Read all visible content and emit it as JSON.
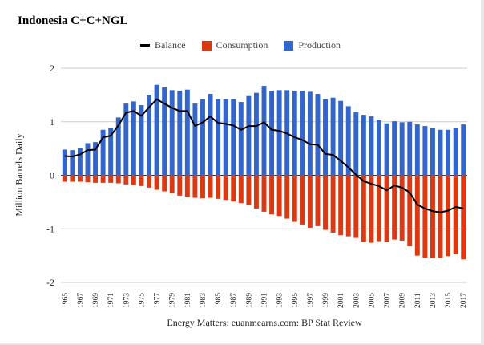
{
  "title": "Indonesia C+C+NGL",
  "legend": {
    "balance": "Balance",
    "consumption": "Consumption",
    "production": "Production"
  },
  "colors": {
    "production": "#3366cc",
    "consumption": "#dc3912",
    "balance": "#000000",
    "grid": "#cccccc",
    "axis": "#333333"
  },
  "ylabel": "Million Barrels Daily",
  "source": "Energy Matters: euanmearns.com: BP Stat Review",
  "chart_data": {
    "type": "bar",
    "title": "Indonesia C+C+NGL",
    "xlabel": "",
    "ylabel": "Million Barrels Daily",
    "ylim": [
      -2,
      2
    ],
    "yticks": [
      "2",
      "1",
      "0",
      "-1",
      "-2"
    ],
    "ytick_values": [
      2,
      1,
      0,
      -1,
      -2
    ],
    "grid": true,
    "legend_position": "top",
    "categories": [
      "1965",
      "1966",
      "1967",
      "1968",
      "1969",
      "1970",
      "1971",
      "1972",
      "1973",
      "1974",
      "1975",
      "1976",
      "1977",
      "1978",
      "1979",
      "1980",
      "1981",
      "1982",
      "1983",
      "1984",
      "1985",
      "1986",
      "1987",
      "1988",
      "1989",
      "1990",
      "1991",
      "1992",
      "1993",
      "1994",
      "1995",
      "1996",
      "1997",
      "1998",
      "1999",
      "2000",
      "2001",
      "2002",
      "2003",
      "2004",
      "2005",
      "2006",
      "2007",
      "2008",
      "2009",
      "2010",
      "2011",
      "2012",
      "2013",
      "2014",
      "2015",
      "2016",
      "2017"
    ],
    "series": [
      {
        "name": "Production",
        "type": "bar",
        "values": [
          0.48,
          0.47,
          0.51,
          0.6,
          0.62,
          0.85,
          0.88,
          1.08,
          1.34,
          1.38,
          1.31,
          1.5,
          1.69,
          1.64,
          1.59,
          1.58,
          1.6,
          1.34,
          1.42,
          1.52,
          1.42,
          1.42,
          1.42,
          1.37,
          1.48,
          1.54,
          1.67,
          1.58,
          1.59,
          1.59,
          1.58,
          1.58,
          1.56,
          1.52,
          1.42,
          1.45,
          1.39,
          1.29,
          1.18,
          1.13,
          1.1,
          1.03,
          0.97,
          1.01,
          0.99,
          1.0,
          0.95,
          0.92,
          0.88,
          0.85,
          0.85,
          0.88,
          0.95
        ]
      },
      {
        "name": "Consumption",
        "type": "bar",
        "values": [
          -0.12,
          -0.12,
          -0.12,
          -0.13,
          -0.14,
          -0.14,
          -0.14,
          -0.15,
          -0.17,
          -0.18,
          -0.2,
          -0.23,
          -0.27,
          -0.3,
          -0.33,
          -0.38,
          -0.4,
          -0.42,
          -0.43,
          -0.42,
          -0.44,
          -0.46,
          -0.49,
          -0.52,
          -0.56,
          -0.62,
          -0.68,
          -0.73,
          -0.76,
          -0.81,
          -0.87,
          -0.92,
          -0.98,
          -0.95,
          -1.02,
          -1.07,
          -1.12,
          -1.14,
          -1.17,
          -1.24,
          -1.26,
          -1.23,
          -1.25,
          -1.2,
          -1.22,
          -1.32,
          -1.5,
          -1.54,
          -1.55,
          -1.54,
          -1.51,
          -1.47,
          -1.57
        ]
      },
      {
        "name": "Balance",
        "type": "line",
        "values": [
          0.36,
          0.35,
          0.39,
          0.47,
          0.48,
          0.71,
          0.74,
          0.93,
          1.17,
          1.2,
          1.11,
          1.27,
          1.42,
          1.34,
          1.26,
          1.2,
          1.2,
          0.92,
          0.99,
          1.1,
          0.98,
          0.96,
          0.93,
          0.85,
          0.92,
          0.92,
          0.99,
          0.85,
          0.83,
          0.78,
          0.71,
          0.66,
          0.58,
          0.57,
          0.4,
          0.38,
          0.27,
          0.15,
          0.01,
          -0.11,
          -0.16,
          -0.2,
          -0.28,
          -0.19,
          -0.23,
          -0.32,
          -0.55,
          -0.62,
          -0.67,
          -0.69,
          -0.66,
          -0.59,
          -0.62
        ]
      }
    ]
  }
}
